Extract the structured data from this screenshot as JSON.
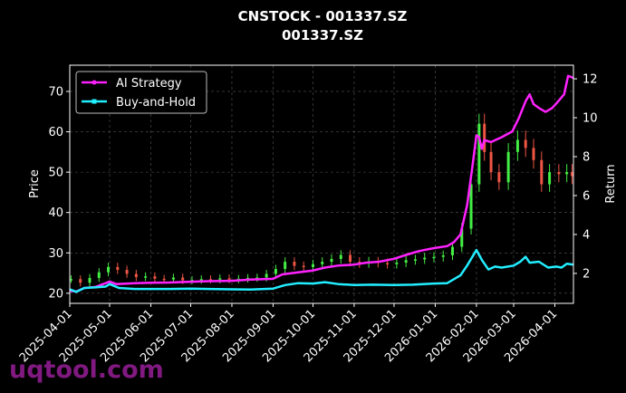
{
  "watermark": "uqtool.com",
  "chart_data": {
    "type": "candlestick+line",
    "title": "CNSTOCK - 001337.SZ",
    "subtitle": "001337.SZ",
    "ylabel": "Price",
    "y2label": "Return",
    "ylim": [
      17.5,
      76.5
    ],
    "y2lim": [
      0.46,
      12.7
    ],
    "xlim": [
      "2025-04-01",
      "2026-04-15"
    ],
    "grid": true,
    "legend_position": "top-left",
    "y_ticks": [
      20,
      30,
      40,
      50,
      60,
      70
    ],
    "y2_ticks": [
      2,
      4,
      6,
      8,
      10,
      12
    ],
    "x_ticks": [
      "2025-04-01",
      "2025-05-01",
      "2025-06-01",
      "2025-07-01",
      "2025-08-01",
      "2025-09-01",
      "2025-10-01",
      "2025-11-01",
      "2025-12-01",
      "2026-01-01",
      "2026-02-01",
      "2026-03-01",
      "2026-04-01"
    ],
    "candle_colors": {
      "up": "#44ee44",
      "down": "#ee5544"
    },
    "candles_price": [
      [
        "2025-04-02",
        23.5
      ],
      [
        "2025-04-09",
        22.6
      ],
      [
        "2025-04-16",
        23.8
      ],
      [
        "2025-04-23",
        25.2
      ],
      [
        "2025-04-30",
        26.5
      ],
      [
        "2025-05-07",
        25.8
      ],
      [
        "2025-05-14",
        24.8
      ],
      [
        "2025-05-21",
        24.0
      ],
      [
        "2025-05-28",
        24.2
      ],
      [
        "2025-06-04",
        23.6
      ],
      [
        "2025-06-11",
        23.4
      ],
      [
        "2025-06-18",
        23.9
      ],
      [
        "2025-06-25",
        23.2
      ],
      [
        "2025-07-02",
        23.3
      ],
      [
        "2025-07-09",
        23.5
      ],
      [
        "2025-07-16",
        23.4
      ],
      [
        "2025-07-23",
        23.7
      ],
      [
        "2025-07-30",
        23.4
      ],
      [
        "2025-08-06",
        23.6
      ],
      [
        "2025-08-13",
        23.8
      ],
      [
        "2025-08-20",
        23.9
      ],
      [
        "2025-08-27",
        24.8
      ],
      [
        "2025-09-03",
        26.0
      ],
      [
        "2025-09-10",
        27.8
      ],
      [
        "2025-09-17",
        26.8
      ],
      [
        "2025-09-24",
        26.5
      ],
      [
        "2025-10-01",
        27.2
      ],
      [
        "2025-10-08",
        27.8
      ],
      [
        "2025-10-15",
        28.5
      ],
      [
        "2025-10-22",
        29.5
      ],
      [
        "2025-10-29",
        27.8
      ],
      [
        "2025-11-05",
        27.4
      ],
      [
        "2025-11-12",
        27.9
      ],
      [
        "2025-11-19",
        27.5
      ],
      [
        "2025-11-26",
        27.2
      ],
      [
        "2025-12-03",
        27.6
      ],
      [
        "2025-12-10",
        28.2
      ],
      [
        "2025-12-17",
        28.4
      ],
      [
        "2025-12-24",
        28.8
      ],
      [
        "2025-12-31",
        29.0
      ],
      [
        "2026-01-07",
        29.4
      ],
      [
        "2026-01-14",
        31.5
      ],
      [
        "2026-01-21",
        36.0
      ],
      [
        "2026-01-28",
        47.0
      ],
      [
        "2026-02-03",
        62.0
      ],
      [
        "2026-02-07",
        55.0
      ],
      [
        "2026-02-12",
        50.0
      ],
      [
        "2026-02-18",
        47.5
      ],
      [
        "2026-02-25",
        55.0
      ],
      [
        "2026-03-04",
        58.0
      ],
      [
        "2026-03-10",
        56.0
      ],
      [
        "2026-03-16",
        53.0
      ],
      [
        "2026-03-22",
        47.0
      ],
      [
        "2026-03-28",
        50.0
      ],
      [
        "2026-04-04",
        49.5
      ],
      [
        "2026-04-10",
        50.0
      ],
      [
        "2026-04-14",
        49.0
      ]
    ],
    "series": [
      {
        "name": "AI Strategy",
        "color": "#ff22ff",
        "points": [
          [
            "2025-04-01",
            1.1
          ],
          [
            "2025-04-06",
            1.07
          ],
          [
            "2025-04-12",
            1.25
          ],
          [
            "2025-04-20",
            1.3
          ],
          [
            "2025-04-28",
            1.5
          ],
          [
            "2025-05-01",
            1.58
          ],
          [
            "2025-05-06",
            1.45
          ],
          [
            "2025-05-20",
            1.5
          ],
          [
            "2025-06-01",
            1.52
          ],
          [
            "2025-06-15",
            1.53
          ],
          [
            "2025-07-01",
            1.57
          ],
          [
            "2025-07-15",
            1.6
          ],
          [
            "2025-08-01",
            1.62
          ],
          [
            "2025-08-15",
            1.68
          ],
          [
            "2025-09-01",
            1.72
          ],
          [
            "2025-09-08",
            1.95
          ],
          [
            "2025-09-20",
            2.05
          ],
          [
            "2025-10-01",
            2.15
          ],
          [
            "2025-10-10",
            2.3
          ],
          [
            "2025-10-20",
            2.4
          ],
          [
            "2025-11-01",
            2.45
          ],
          [
            "2025-11-10",
            2.55
          ],
          [
            "2025-11-20",
            2.6
          ],
          [
            "2025-12-01",
            2.75
          ],
          [
            "2025-12-10",
            2.95
          ],
          [
            "2025-12-20",
            3.15
          ],
          [
            "2025-12-31",
            3.3
          ],
          [
            "2026-01-10",
            3.4
          ],
          [
            "2026-01-15",
            3.6
          ],
          [
            "2026-01-20",
            4.0
          ],
          [
            "2026-01-25",
            5.5
          ],
          [
            "2026-01-29",
            7.5
          ],
          [
            "2026-02-01",
            9.1
          ],
          [
            "2026-02-03",
            9.0
          ],
          [
            "2026-02-05",
            8.4
          ],
          [
            "2026-02-07",
            8.85
          ],
          [
            "2026-02-12",
            8.75
          ],
          [
            "2026-02-20",
            9.0
          ],
          [
            "2026-02-28",
            9.3
          ],
          [
            "2026-03-05",
            10.0
          ],
          [
            "2026-03-10",
            10.85
          ],
          [
            "2026-03-13",
            11.2
          ],
          [
            "2026-03-16",
            10.7
          ],
          [
            "2026-03-20",
            10.5
          ],
          [
            "2026-03-25",
            10.3
          ],
          [
            "2026-03-30",
            10.5
          ],
          [
            "2026-04-03",
            10.8
          ],
          [
            "2026-04-08",
            11.2
          ],
          [
            "2026-04-11",
            12.15
          ],
          [
            "2026-04-15",
            12.05
          ]
        ]
      },
      {
        "name": "Buy-and-Hold",
        "color": "#22eeff",
        "points": [
          [
            "2025-04-01",
            1.18
          ],
          [
            "2025-04-06",
            1.05
          ],
          [
            "2025-04-12",
            1.25
          ],
          [
            "2025-04-20",
            1.28
          ],
          [
            "2025-04-28",
            1.32
          ],
          [
            "2025-05-01",
            1.45
          ],
          [
            "2025-05-08",
            1.25
          ],
          [
            "2025-05-20",
            1.2
          ],
          [
            "2025-06-01",
            1.2
          ],
          [
            "2025-06-15",
            1.2
          ],
          [
            "2025-07-01",
            1.22
          ],
          [
            "2025-07-15",
            1.2
          ],
          [
            "2025-08-01",
            1.18
          ],
          [
            "2025-08-15",
            1.17
          ],
          [
            "2025-09-01",
            1.22
          ],
          [
            "2025-09-10",
            1.4
          ],
          [
            "2025-09-20",
            1.5
          ],
          [
            "2025-10-01",
            1.48
          ],
          [
            "2025-10-10",
            1.55
          ],
          [
            "2025-10-20",
            1.45
          ],
          [
            "2025-11-01",
            1.4
          ],
          [
            "2025-11-15",
            1.42
          ],
          [
            "2025-12-01",
            1.4
          ],
          [
            "2025-12-15",
            1.42
          ],
          [
            "2025-12-31",
            1.48
          ],
          [
            "2026-01-10",
            1.5
          ],
          [
            "2026-01-20",
            1.9
          ],
          [
            "2026-01-25",
            2.4
          ],
          [
            "2026-02-01",
            3.2
          ],
          [
            "2026-02-05",
            2.7
          ],
          [
            "2026-02-10",
            2.2
          ],
          [
            "2026-02-15",
            2.35
          ],
          [
            "2026-02-20",
            2.3
          ],
          [
            "2026-03-01",
            2.4
          ],
          [
            "2026-03-06",
            2.6
          ],
          [
            "2026-03-10",
            2.85
          ],
          [
            "2026-03-13",
            2.55
          ],
          [
            "2026-03-20",
            2.6
          ],
          [
            "2026-03-27",
            2.3
          ],
          [
            "2026-04-02",
            2.35
          ],
          [
            "2026-04-06",
            2.3
          ],
          [
            "2026-04-10",
            2.5
          ],
          [
            "2026-04-15",
            2.45
          ]
        ]
      }
    ]
  }
}
